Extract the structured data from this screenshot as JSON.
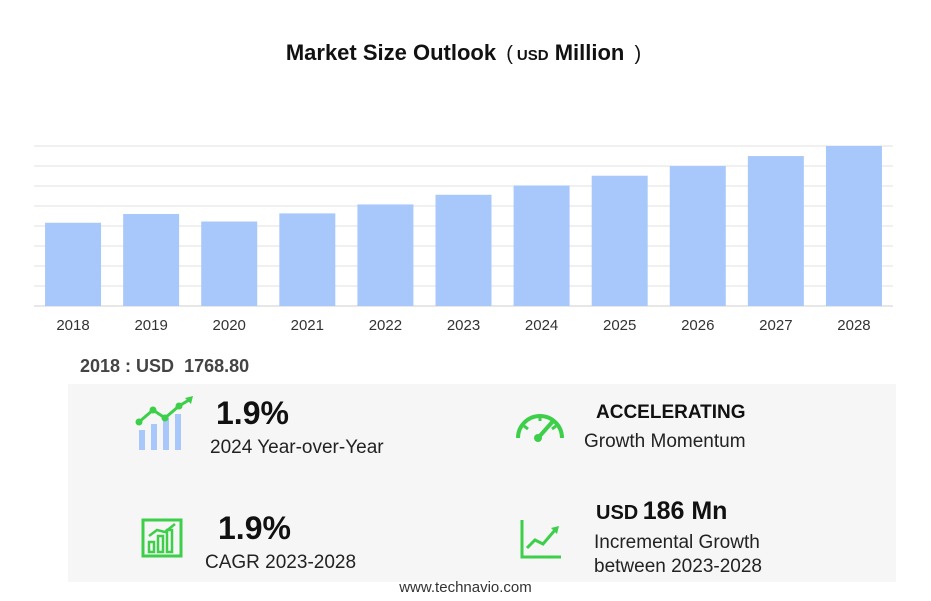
{
  "title": {
    "main": "Market Size Outlook",
    "open_paren": "(",
    "unit": "USD",
    "unit_word": "Million",
    "close_paren": ")"
  },
  "chart_data": {
    "type": "bar",
    "categories": [
      "2018",
      "2019",
      "2020",
      "2021",
      "2022",
      "2023",
      "2024",
      "2025",
      "2026",
      "2027",
      "2028"
    ],
    "values": [
      1768.8,
      1802.4,
      1773.5,
      1804.7,
      1838.9,
      1876.0,
      1911.6,
      1948.9,
      1986.0,
      2024.2,
      2062.7
    ],
    "ylim": [
      0,
      2062.7
    ],
    "grid": true,
    "bar_color": "#a8c8fc"
  },
  "base_year": {
    "label": "2018 : USD",
    "value": "1768.80"
  },
  "stats": {
    "yoy": {
      "value": "1.9%",
      "caption": "2024 Year-over-Year"
    },
    "momentum": {
      "value": "ACCELERATING",
      "caption": "Growth Momentum"
    },
    "cagr": {
      "value": "1.9%",
      "caption": "CAGR 2023-2028"
    },
    "incremental": {
      "unit": "USD",
      "value": "186 Mn",
      "caption_line1": "Incremental Growth",
      "caption_line2": "between 2023-2028"
    }
  },
  "icon_color": "#3ecf4a",
  "footer": "www.technavio.com"
}
